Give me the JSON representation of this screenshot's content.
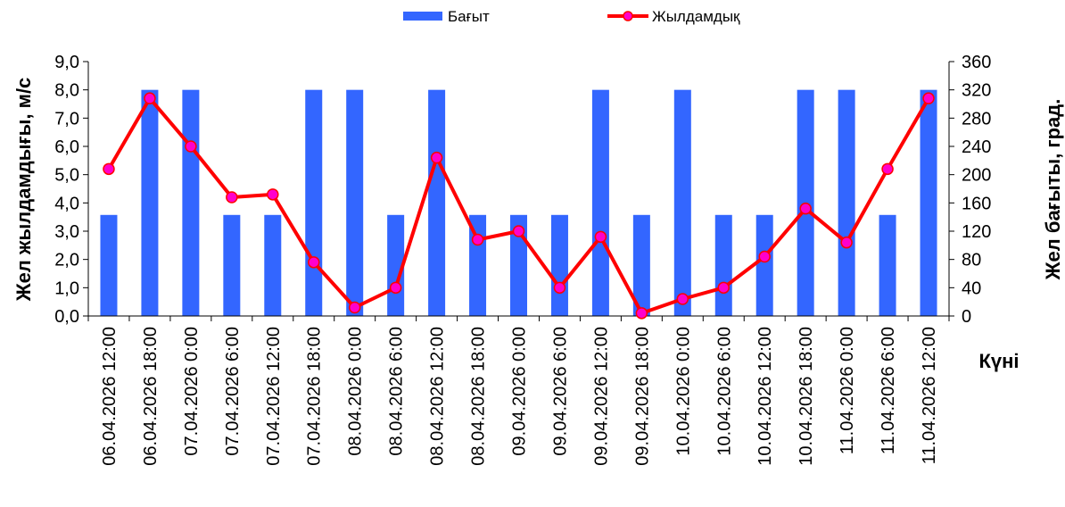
{
  "chart_data": {
    "type": "bar+line",
    "categories": [
      "06.04.2026 12:00",
      "06.04.2026 18:00",
      "07.04.2026 0:00",
      "07.04.2026 6:00",
      "07.04.2026 12:00",
      "07.04.2026 18:00",
      "08.04.2026 0:00",
      "08.04.2026 6:00",
      "08.04.2026 12:00",
      "08.04.2026 18:00",
      "09.04.2026 0:00",
      "09.04.2026 6:00",
      "09.04.2026 12:00",
      "09.04.2026 18:00",
      "10.04.2026 0:00",
      "10.04.2026 6:00",
      "10.04.2026 12:00",
      "10.04.2026 18:00",
      "11.04.2026 0:00",
      "11.04.2026 6:00",
      "11.04.2026 12:00"
    ],
    "series": [
      {
        "name": "Бағыт",
        "kind": "bar",
        "axis": "right",
        "color": "#3366ff",
        "values": [
          143,
          320,
          320,
          143,
          143,
          320,
          320,
          143,
          320,
          143,
          143,
          143,
          320,
          143,
          320,
          143,
          143,
          320,
          320,
          143,
          320
        ]
      },
      {
        "name": "Жылдамдық",
        "kind": "line",
        "axis": "left",
        "color": "#ff0000",
        "marker_color": "#ff00cc",
        "values": [
          5.2,
          7.7,
          6.0,
          4.2,
          4.3,
          1.9,
          0.3,
          1.0,
          5.6,
          2.7,
          3.0,
          1.0,
          2.8,
          0.1,
          0.6,
          1.0,
          2.1,
          3.8,
          2.6,
          5.2,
          7.7
        ]
      }
    ],
    "ylabel": "Жел жылдамдығы, м/с",
    "y2label": "Жел бағыты, град.",
    "xlabel": "Күні",
    "ylim": [
      0,
      9
    ],
    "y2lim": [
      0,
      360
    ],
    "yticks": [
      "0,0",
      "1,0",
      "2,0",
      "3,0",
      "4,0",
      "5,0",
      "6,0",
      "7,0",
      "8,0",
      "9,0"
    ],
    "y2ticks": [
      "0",
      "40",
      "80",
      "120",
      "160",
      "200",
      "240",
      "280",
      "320",
      "360"
    ],
    "grid": false,
    "legend_position": "top-center"
  }
}
